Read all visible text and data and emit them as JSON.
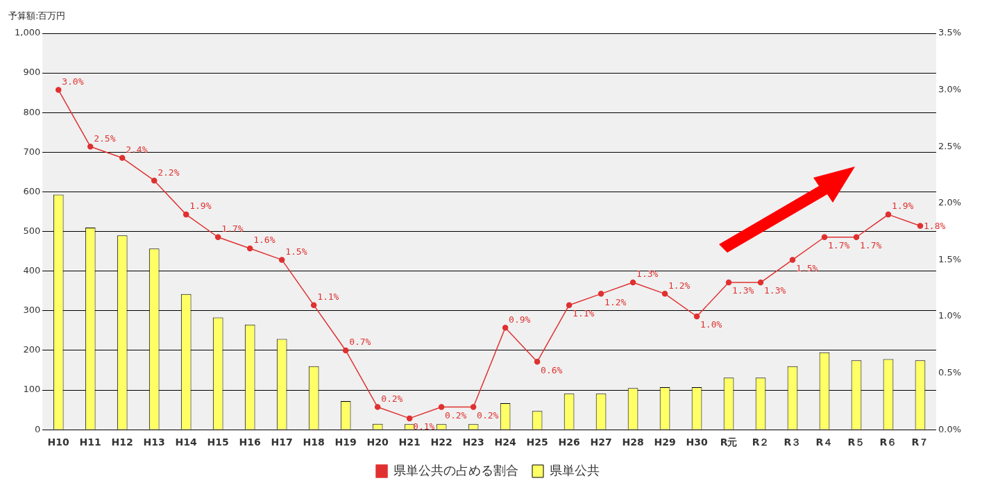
{
  "chart_data": {
    "type": "bar",
    "ylabel": "予算額:百万円",
    "categories": [
      "H10",
      "H11",
      "H12",
      "H13",
      "H14",
      "H15",
      "H16",
      "H17",
      "H18",
      "H19",
      "H20",
      "H21",
      "H22",
      "H23",
      "H24",
      "H25",
      "H26",
      "H27",
      "H28",
      "H29",
      "H30",
      "R元",
      "R２",
      "R３",
      "R４",
      "R５",
      "R６",
      "R７"
    ],
    "series": [
      {
        "name": "県単公共",
        "color": "#ffff66",
        "values": [
          593,
          510,
          490,
          457,
          342,
          283,
          265,
          229,
          160,
          72,
          15,
          14,
          14,
          14,
          67,
          47,
          91,
          91,
          105,
          107,
          107,
          131,
          131,
          160,
          195,
          175,
          178,
          175
        ]
      },
      {
        "name": "県単公共の占める割合",
        "type": "line",
        "axis": "y2",
        "color": "#e03030",
        "marker": "circle",
        "values": [
          3.0,
          2.5,
          2.4,
          2.2,
          1.9,
          1.7,
          1.6,
          1.5,
          1.1,
          0.7,
          0.2,
          0.1,
          0.2,
          0.2,
          0.9,
          0.6,
          1.1,
          1.2,
          1.3,
          1.2,
          1.0,
          1.3,
          1.3,
          1.5,
          1.7,
          1.7,
          1.9,
          1.8
        ],
        "value_labels": [
          "3.0%",
          "2.5%",
          "2.4%",
          "2.2%",
          "1.9%",
          "1.7%",
          "1.6%",
          "1.5%",
          "1.1%",
          "0.7%",
          "0.2%",
          "0.1%",
          "0.2%",
          "0.2%",
          "0.9%",
          "0.6%",
          "1.1%",
          "1.2%",
          "1.3%",
          "1.2%",
          "1.0%",
          "1.3%",
          "1.3%",
          "1.5%",
          "1.7%",
          "1.7%",
          "1.9%",
          "1.8%"
        ]
      }
    ],
    "ylim": [
      0,
      1000
    ],
    "yticks": [
      0,
      100,
      200,
      300,
      400,
      500,
      600,
      700,
      800,
      900,
      {
        "value": 1000,
        "label": "1,000"
      }
    ],
    "y2lim": [
      0,
      3.5
    ],
    "y2ticks": [
      {
        "value": 0,
        "label": "0.0%"
      },
      {
        "value": 0.5,
        "label": "0.5%"
      },
      {
        "value": 1,
        "label": "1.0%"
      },
      {
        "value": 1.5,
        "label": "1.5%"
      },
      {
        "value": 2,
        "label": "2.0%"
      },
      {
        "value": 2.5,
        "label": "2.5%"
      },
      {
        "value": 3,
        "label": "3.0%"
      },
      {
        "value": 3.5,
        "label": "3.5%"
      }
    ],
    "grid": "y",
    "legend": "bottom"
  }
}
